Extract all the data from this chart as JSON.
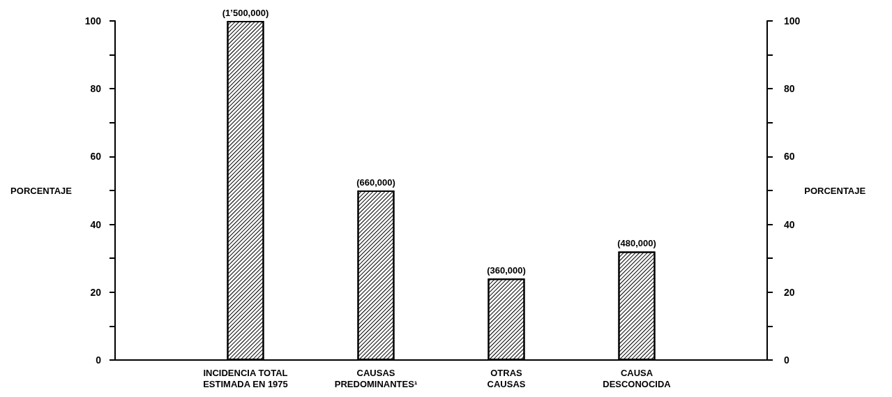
{
  "chart_data": {
    "type": "bar",
    "ylim": [
      0,
      100
    ],
    "yticks": [
      0,
      {
        "value": 10,
        "label": null
      },
      20,
      {
        "value": 30,
        "label": null
      },
      40,
      {
        "value": 50,
        "label": null
      },
      60,
      {
        "value": 70,
        "label": null
      },
      80,
      {
        "value": 90,
        "label": null
      },
      100
    ],
    "ylabel": "PORCENTAJE",
    "y2lim": [
      0,
      100
    ],
    "y2ticks": [
      0,
      {
        "value": 10,
        "label": null
      },
      20,
      {
        "value": 30,
        "label": null
      },
      40,
      {
        "value": 50,
        "label": null
      },
      60,
      {
        "value": 70,
        "label": null
      },
      80,
      {
        "value": 90,
        "label": null
      },
      100
    ],
    "y2label": "PORCENTAJE",
    "categories": [
      "INCIDENCIA TOTAL\nESTIMADA EN 1975",
      "CAUSAS\nPREDOMINANTES¹",
      "OTRAS\nCAUSAS",
      "CAUSA\nDESCONOCIDA"
    ],
    "values": [
      100,
      50,
      24,
      32
    ],
    "color": "#000000",
    "annotations": [
      {
        "text": "(1’500,000)",
        "x": "INCIDENCIA TOTAL\nESTIMADA EN 1975",
        "y": 100
      },
      {
        "text": "(660,000)",
        "x": "CAUSAS\nPREDOMINANTES¹",
        "y": 50
      },
      {
        "text": "(360,000)",
        "x": "OTRAS\nCAUSAS",
        "y": 24
      },
      {
        "text": "(480,000)",
        "x": "CAUSA\nDESCONOCIDA",
        "y": 32
      }
    ]
  }
}
